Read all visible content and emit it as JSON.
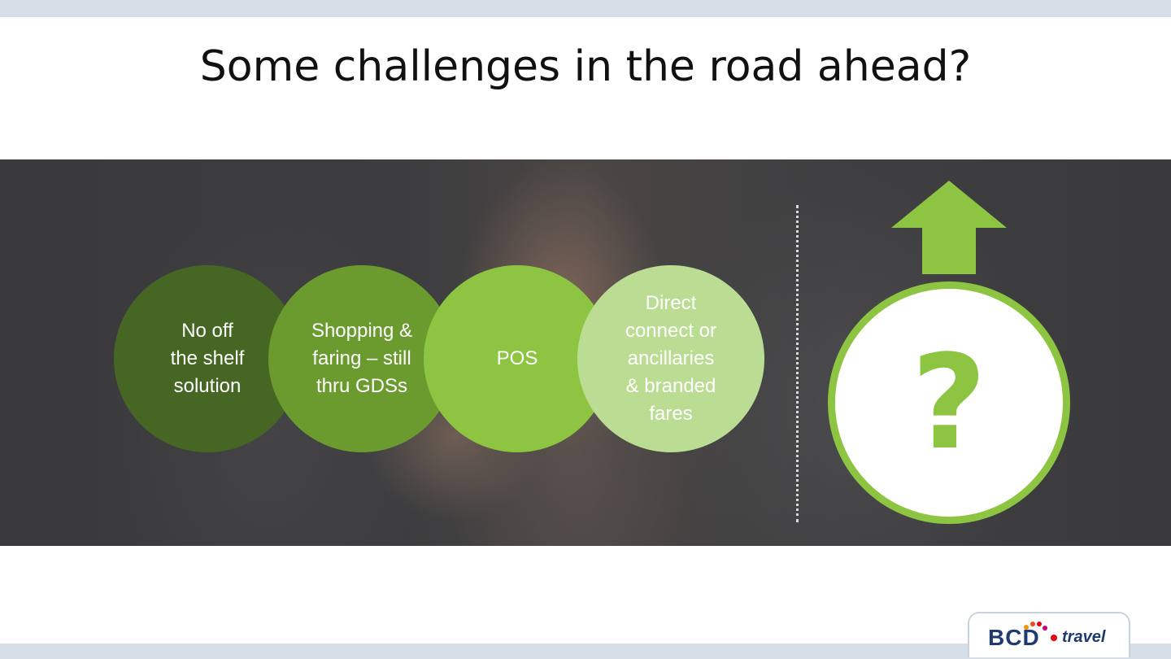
{
  "slide": {
    "title": "Some challenges in the road ahead?"
  },
  "challenges": [
    {
      "label": "No off\nthe shelf\nsolution",
      "color": "#466724"
    },
    {
      "label": "Shopping &\nfaring – still\nthru GDSs",
      "color": "#6b9a2f"
    },
    {
      "label": "POS",
      "color": "#8dc542"
    },
    {
      "label": "Direct\nconnect or\nancillaries\n& branded\nfares",
      "color": "#bbdd93"
    }
  ],
  "outlook": {
    "symbol": "?",
    "arrow_icon": "up-arrow-icon",
    "accent_color": "#8dc542"
  },
  "logo": {
    "brand": "BCD",
    "suffix": "travel"
  }
}
